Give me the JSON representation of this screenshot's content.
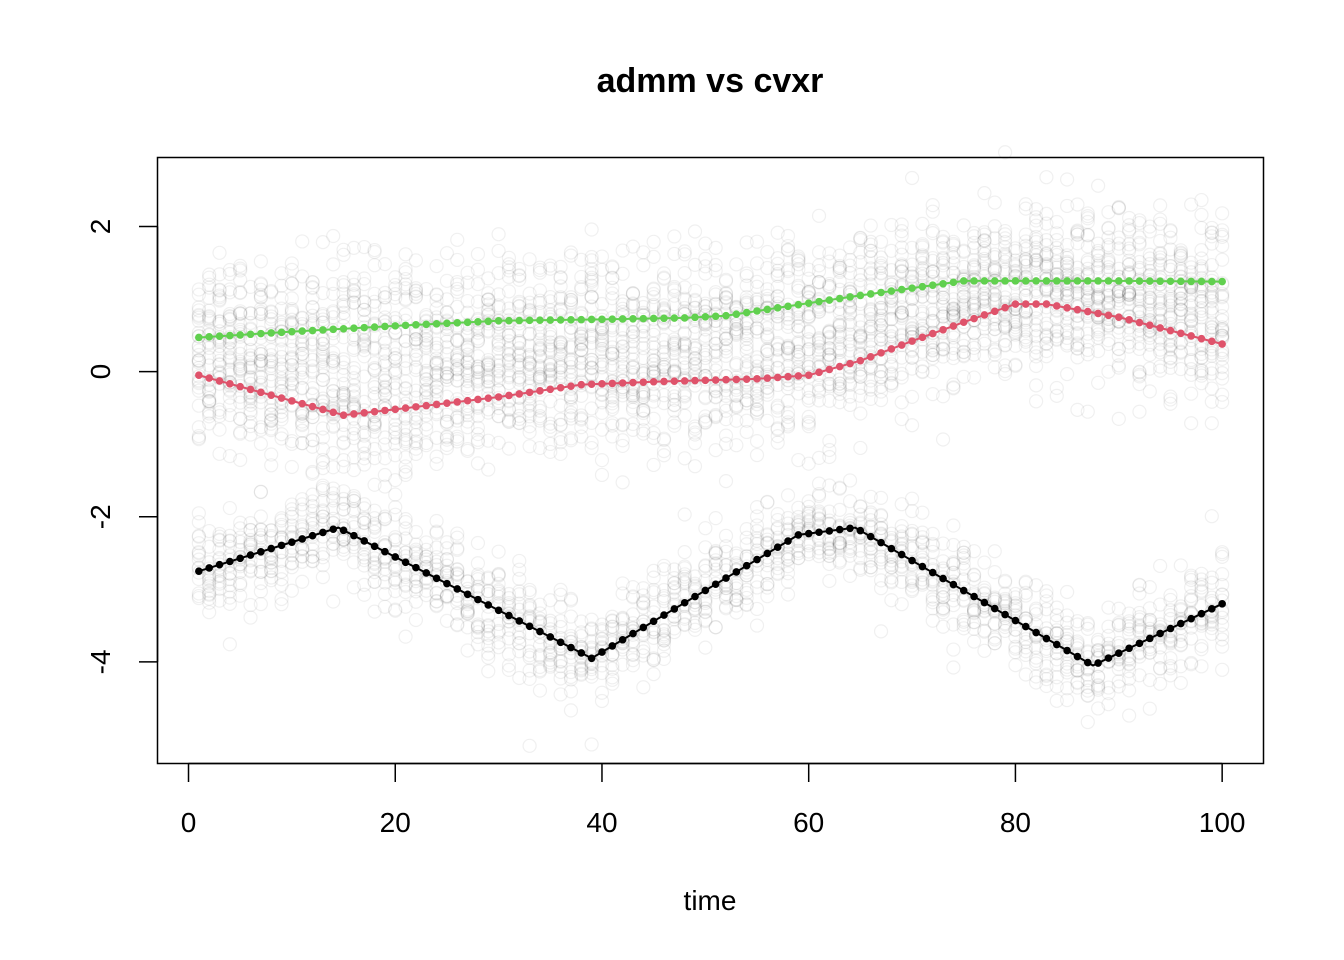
{
  "chart_data": {
    "type": "scatter",
    "title": "admm vs cvxr",
    "xlabel": "time",
    "ylabel": "",
    "xlim": [
      -3,
      104
    ],
    "ylim": [
      -5.4,
      2.95
    ],
    "xticks": [
      0,
      20,
      40,
      60,
      80,
      100
    ],
    "yticks": [
      -4,
      -2,
      0,
      2
    ],
    "grid": false,
    "legend": "none",
    "x": [
      1,
      5,
      10,
      15,
      20,
      25,
      30,
      35,
      40,
      45,
      50,
      55,
      60,
      65,
      70,
      75,
      80,
      85,
      90,
      95,
      100
    ],
    "series": [
      {
        "color": "#000000",
        "x": [
          1,
          14.5,
          39,
          59,
          64.5,
          87.5,
          100
        ],
        "values": [
          -2.75,
          -2.15,
          -3.95,
          -2.25,
          -2.15,
          -4.05,
          -3.2
        ],
        "cloud_spread": 0.35
      },
      {
        "color": "#DF536B",
        "x": [
          1,
          15,
          20,
          30,
          38,
          45,
          50,
          55,
          60,
          65,
          70,
          75,
          80,
          83,
          90,
          100
        ],
        "values": [
          -0.05,
          -0.6,
          -0.52,
          -0.35,
          -0.18,
          -0.14,
          -0.12,
          -0.1,
          -0.05,
          0.15,
          0.42,
          0.68,
          0.93,
          0.93,
          0.75,
          0.38
        ],
        "cloud_spread": 0.5
      },
      {
        "color": "#61D04F",
        "x": [
          1,
          10,
          20,
          30,
          40,
          48,
          52,
          58,
          65,
          70,
          75,
          80,
          85,
          90,
          100
        ],
        "values": [
          0.47,
          0.55,
          0.63,
          0.7,
          0.72,
          0.74,
          0.77,
          0.9,
          1.05,
          1.15,
          1.25,
          1.25,
          1.25,
          1.25,
          1.24
        ],
        "cloud_spread": 0.5
      }
    ]
  }
}
